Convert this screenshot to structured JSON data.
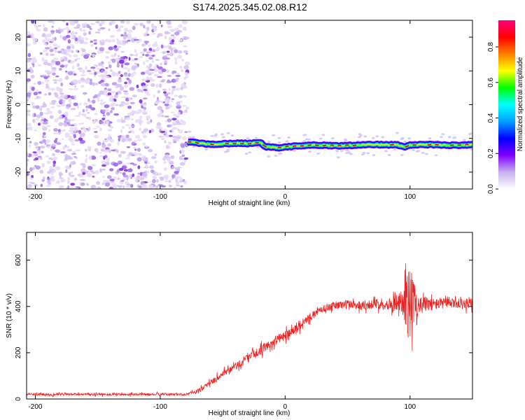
{
  "figure_title": "S174.2025.345.02.08.R12",
  "colors": {
    "spectral_line": "#ff0000",
    "snr_line": "#ee2222",
    "noise_purple": "#7b1fe8",
    "axes": "#000000"
  },
  "chart_data": [
    {
      "type": "heatmap",
      "title": "",
      "xlabel": "Height of straight line (km)",
      "ylabel": "Frequency (Hz)",
      "xlim": [
        -207,
        150
      ],
      "ylim": [
        -25,
        25
      ],
      "x_ticks": [
        -200,
        -100,
        0,
        100
      ],
      "x_tick_labels": [
        "-200",
        "-100",
        "0",
        "100"
      ],
      "y_ticks": [
        -20,
        -10,
        0,
        10,
        20
      ],
      "y_tick_labels": [
        "-20",
        "-10",
        "0",
        "10",
        "20"
      ],
      "noise_region_x": [
        -207,
        -78
      ],
      "signal_track": {
        "x": [
          -78,
          -70,
          -60,
          -50,
          -40,
          -30,
          -20,
          -15,
          -10,
          -5,
          0,
          10,
          20,
          30,
          40,
          50,
          60,
          70,
          80,
          90,
          95,
          100,
          110,
          120,
          130,
          140,
          150
        ],
        "frequency": [
          -11,
          -11.3,
          -11.8,
          -11.6,
          -11.4,
          -11.5,
          -11.2,
          -12.6,
          -12.5,
          -12.9,
          -12.6,
          -12.2,
          -12.0,
          -12.0,
          -12.2,
          -12.1,
          -11.9,
          -11.8,
          -11.9,
          -11.9,
          -12.6,
          -12.0,
          -11.8,
          -11.9,
          -12.0,
          -12.0,
          -11.8
        ],
        "peak_amplitude": 0.9
      },
      "colorbar": {
        "label": "Normalized spectral amplitude",
        "range": [
          0.0,
          0.95
        ],
        "ticks": [
          0.0,
          0.2,
          0.4,
          0.6,
          0.8
        ],
        "tick_labels": [
          "0.0",
          "0.2",
          "0.4",
          "0.6",
          "0.8"
        ],
        "colors": [
          "#ffffff",
          "#c8b0f0",
          "#8000ff",
          "#0000ff",
          "#00a0ff",
          "#00ffff",
          "#00ff00",
          "#ffff00",
          "#ff8000",
          "#ff0000",
          "#ff0080"
        ]
      }
    },
    {
      "type": "line",
      "title": "",
      "xlabel": "Height of straight line (km)",
      "ylabel": "SNR (10 * v/v)",
      "xlim": [
        -207,
        150
      ],
      "ylim": [
        0,
        720
      ],
      "x_ticks": [
        -200,
        -100,
        0,
        100
      ],
      "x_tick_labels": [
        "-200",
        "-100",
        "0",
        "100"
      ],
      "y_ticks": [
        0,
        200,
        400,
        600
      ],
      "y_tick_labels": [
        "0",
        "200",
        "400",
        "600"
      ],
      "series": [
        {
          "name": "SNR",
          "x": [
            -207,
            -150,
            -100,
            -80,
            -70,
            -60,
            -50,
            -40,
            -30,
            -20,
            -10,
            0,
            10,
            20,
            30,
            40,
            50,
            60,
            70,
            80,
            85,
            90,
            95,
            98,
            100,
            102,
            105,
            110,
            120,
            130,
            140,
            150
          ],
          "mean": [
            20,
            20,
            20,
            20,
            35,
            70,
            105,
            140,
            175,
            210,
            245,
            275,
            310,
            355,
            390,
            405,
            410,
            405,
            410,
            410,
            410,
            412,
            415,
            420,
            410,
            420,
            412,
            410,
            410,
            415,
            412,
            412
          ],
          "spread": [
            10,
            10,
            10,
            10,
            15,
            25,
            30,
            35,
            40,
            40,
            40,
            40,
            40,
            35,
            30,
            35,
            40,
            40,
            40,
            45,
            55,
            80,
            150,
            300,
            330,
            250,
            120,
            70,
            50,
            45,
            45,
            45
          ]
        }
      ]
    }
  ]
}
